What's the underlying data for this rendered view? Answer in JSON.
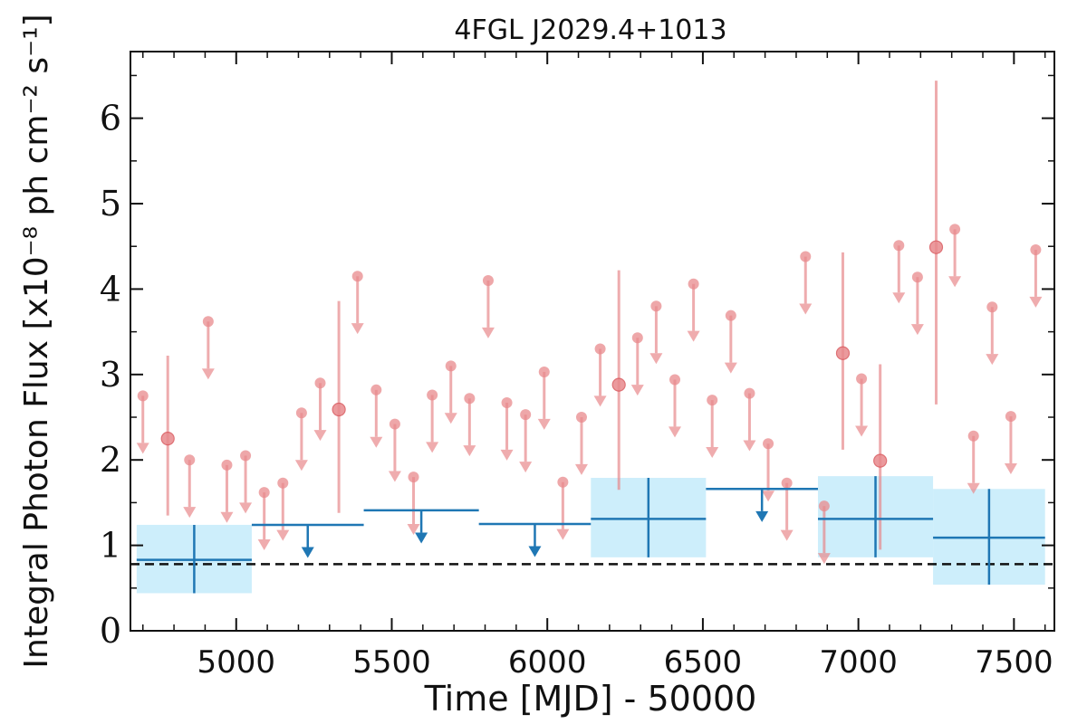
{
  "chart_data": {
    "type": "scatter",
    "title": "4FGL J2029.4+1013",
    "xlabel": "Time [MJD] - 50000",
    "ylabel": "Integral Photon Flux [x10⁻⁸ ph cm⁻² s⁻¹]",
    "xlim": [
      4660,
      7630
    ],
    "ylim": [
      0,
      6.78
    ],
    "xticks": [
      5000,
      5500,
      6000,
      6500,
      7000,
      7500
    ],
    "xtick_labels": [
      "5000",
      "5500",
      "6000",
      "6500",
      "7000",
      "7500"
    ],
    "yticks": [
      0,
      1,
      2,
      3,
      4,
      5,
      6
    ],
    "ytick_labels": [
      "0",
      "1",
      "2",
      "3",
      "4",
      "5",
      "6"
    ],
    "grid": false,
    "reference_line": {
      "y": 0.78,
      "style": "dashed",
      "color": "#111111"
    },
    "colors": {
      "short_bins": "#e8898c",
      "long_bins": "#1f77b4",
      "long_bin_band": "#cdeefb"
    },
    "short_bin_upper_limits": [
      {
        "x": 4700,
        "y": 2.75
      },
      {
        "x": 4850,
        "y": 2.0
      },
      {
        "x": 4910,
        "y": 3.62
      },
      {
        "x": 4970,
        "y": 1.94
      },
      {
        "x": 5030,
        "y": 2.05
      },
      {
        "x": 5090,
        "y": 1.62
      },
      {
        "x": 5150,
        "y": 1.73
      },
      {
        "x": 5210,
        "y": 2.55
      },
      {
        "x": 5270,
        "y": 2.9
      },
      {
        "x": 5390,
        "y": 4.15
      },
      {
        "x": 5450,
        "y": 2.82
      },
      {
        "x": 5510,
        "y": 2.42
      },
      {
        "x": 5570,
        "y": 1.8
      },
      {
        "x": 5630,
        "y": 2.76
      },
      {
        "x": 5690,
        "y": 3.1
      },
      {
        "x": 5750,
        "y": 2.72
      },
      {
        "x": 5810,
        "y": 4.1
      },
      {
        "x": 5870,
        "y": 2.67
      },
      {
        "x": 5930,
        "y": 2.53
      },
      {
        "x": 5990,
        "y": 3.03
      },
      {
        "x": 6050,
        "y": 1.74
      },
      {
        "x": 6110,
        "y": 2.5
      },
      {
        "x": 6170,
        "y": 3.3
      },
      {
        "x": 6290,
        "y": 3.43
      },
      {
        "x": 6350,
        "y": 3.8
      },
      {
        "x": 6410,
        "y": 2.94
      },
      {
        "x": 6470,
        "y": 4.06
      },
      {
        "x": 6530,
        "y": 2.7
      },
      {
        "x": 6590,
        "y": 3.69
      },
      {
        "x": 6650,
        "y": 2.78
      },
      {
        "x": 6710,
        "y": 2.19
      },
      {
        "x": 6770,
        "y": 1.73
      },
      {
        "x": 6830,
        "y": 4.38
      },
      {
        "x": 6890,
        "y": 1.46
      },
      {
        "x": 7010,
        "y": 2.95
      },
      {
        "x": 7130,
        "y": 4.51
      },
      {
        "x": 7190,
        "y": 4.14
      },
      {
        "x": 7310,
        "y": 4.7
      },
      {
        "x": 7370,
        "y": 2.28
      },
      {
        "x": 7430,
        "y": 3.79
      },
      {
        "x": 7490,
        "y": 2.51
      },
      {
        "x": 7570,
        "y": 4.46
      }
    ],
    "short_bin_detections": [
      {
        "x": 4780,
        "y": 2.25,
        "ylo": 1.35,
        "yhi": 3.22
      },
      {
        "x": 5330,
        "y": 2.59,
        "ylo": 1.38,
        "yhi": 3.86
      },
      {
        "x": 6230,
        "y": 2.88,
        "ylo": 1.65,
        "yhi": 4.22
      },
      {
        "x": 6950,
        "y": 3.25,
        "ylo": 2.12,
        "yhi": 4.43
      },
      {
        "x": 7070,
        "y": 1.99,
        "ylo": 0.95,
        "yhi": 3.12
      },
      {
        "x": 7250,
        "y": 4.49,
        "ylo": 2.65,
        "yhi": 6.44
      }
    ],
    "long_bin_detections": [
      {
        "x": 4865,
        "x0": 4680,
        "x1": 5050,
        "y": 0.83,
        "ylo": 0.44,
        "yhi": 1.24
      },
      {
        "x": 6325,
        "x0": 6140,
        "x1": 6510,
        "y": 1.31,
        "ylo": 0.86,
        "yhi": 1.79
      },
      {
        "x": 7055,
        "x0": 6870,
        "x1": 7240,
        "y": 1.31,
        "ylo": 0.86,
        "yhi": 1.81
      },
      {
        "x": 7420,
        "x0": 7240,
        "x1": 7600,
        "y": 1.09,
        "ylo": 0.54,
        "yhi": 1.66
      }
    ],
    "long_bin_upper_limits": [
      {
        "x": 5230,
        "x0": 5050,
        "x1": 5410,
        "y": 1.24
      },
      {
        "x": 5595,
        "x0": 5410,
        "x1": 5780,
        "y": 1.41
      },
      {
        "x": 5960,
        "x0": 5780,
        "x1": 6140,
        "y": 1.25
      },
      {
        "x": 6690,
        "x0": 6510,
        "x1": 6870,
        "y": 1.66
      }
    ]
  }
}
